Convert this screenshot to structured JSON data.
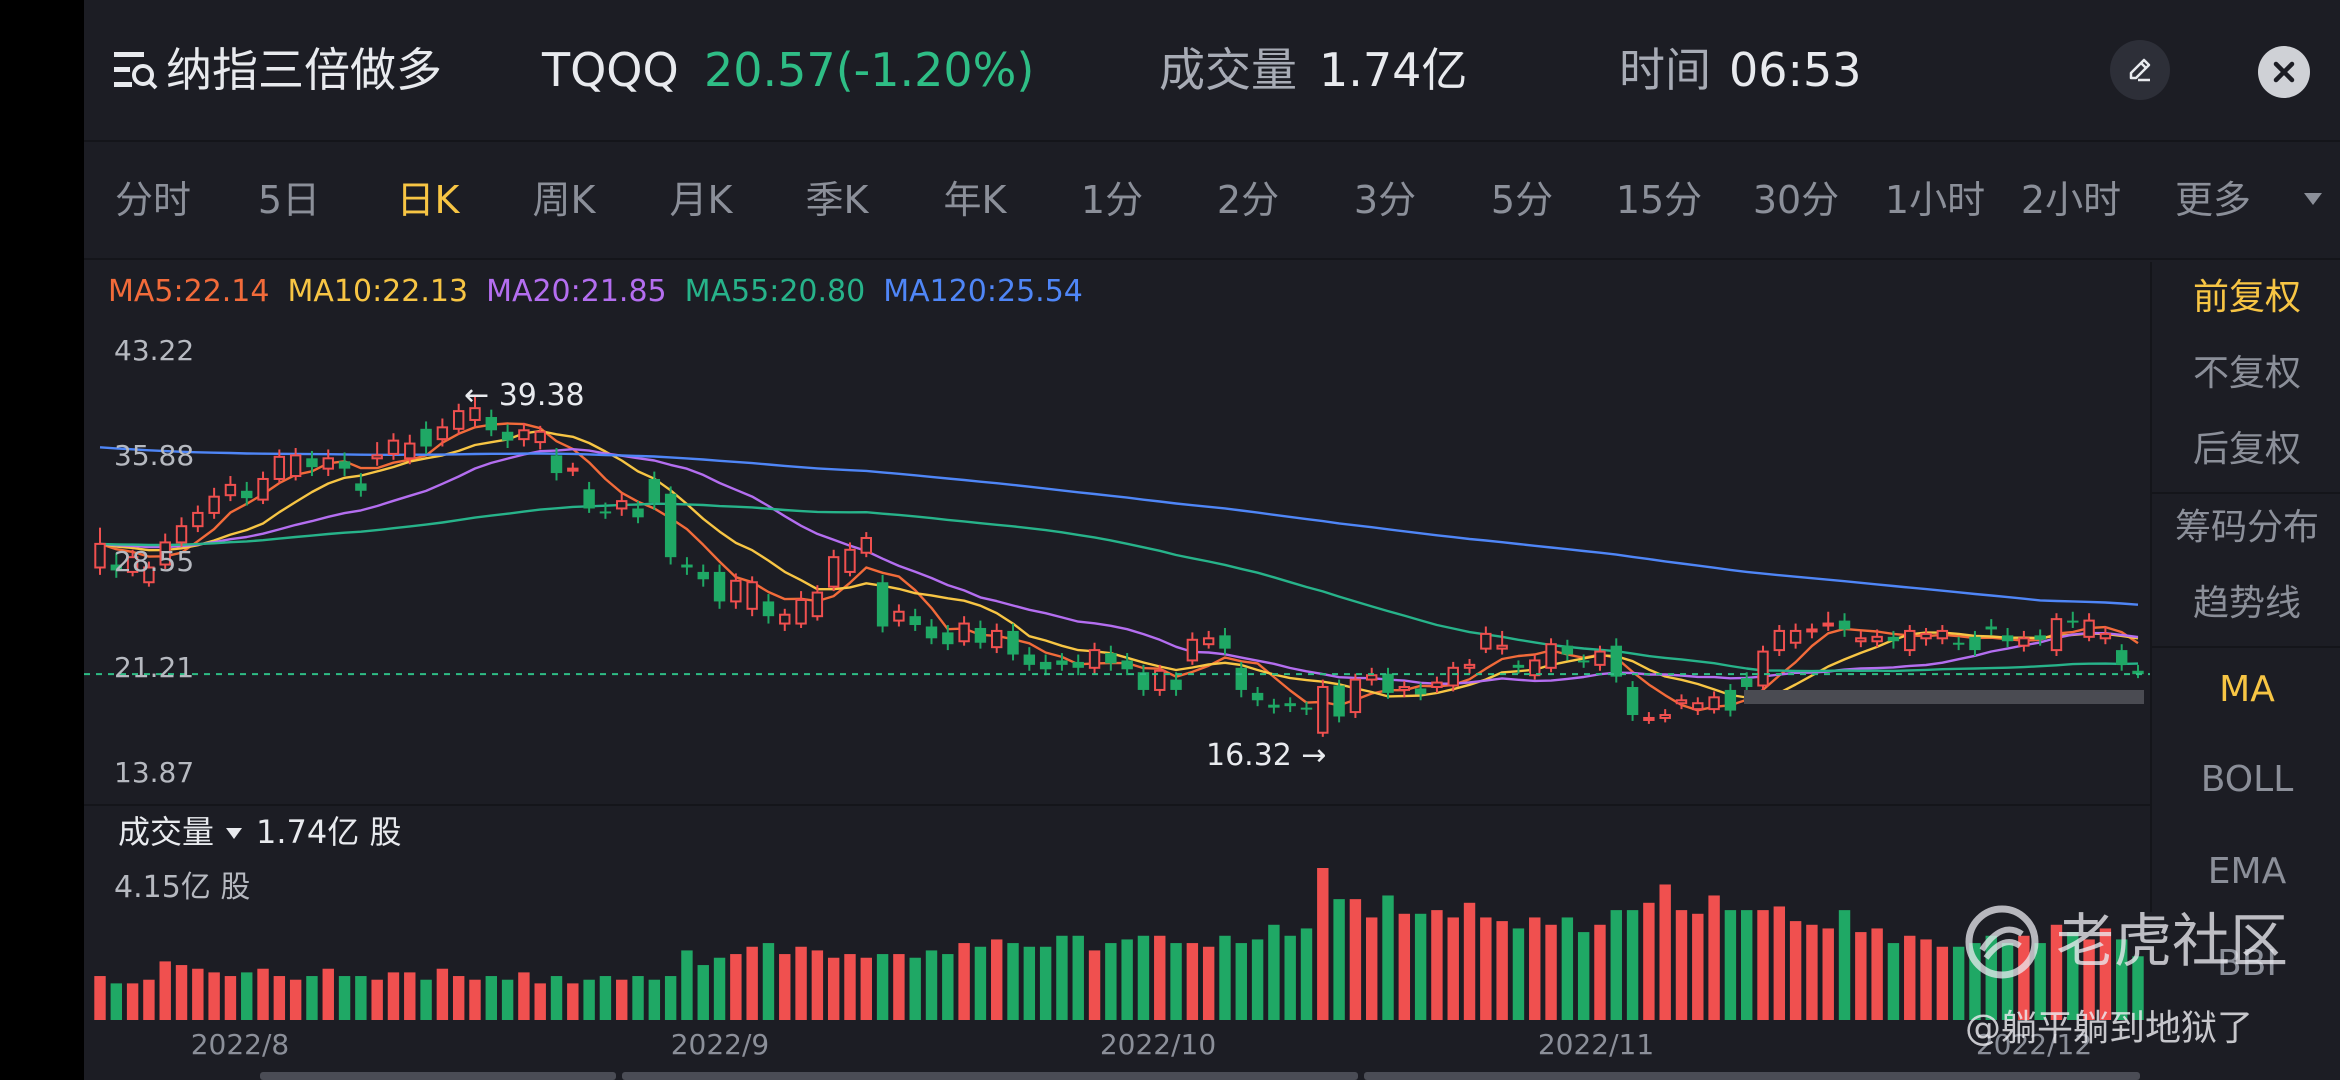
{
  "header": {
    "name": "纳指三倍做多",
    "ticker": "TQQQ",
    "price": "20.57(-1.20%)",
    "volume_label": "成交量",
    "volume_value": "1.74亿",
    "time_label": "时间",
    "time_value": "06:53",
    "menu_icon": "menu-search-icon",
    "edit_icon": "pencil-icon",
    "close_icon": "close-icon"
  },
  "periods": [
    "分时",
    "5日",
    "日K",
    "周K",
    "月K",
    "季K",
    "年K",
    "1分",
    "2分",
    "3分",
    "5分",
    "15分",
    "30分",
    "1小时",
    "2小时",
    "更多"
  ],
  "active_period": "日K",
  "ma_legend": [
    {
      "label": "MA5:22.14",
      "color": "#f26b3a"
    },
    {
      "label": "MA10:22.13",
      "color": "#f7c544"
    },
    {
      "label": "MA20:21.85",
      "color": "#b46ef0"
    },
    {
      "label": "MA55:20.80",
      "color": "#27b38a"
    },
    {
      "label": "MA120:25.54",
      "color": "#4f86f7"
    }
  ],
  "right_panel": {
    "items": [
      "前复权",
      "不复权",
      "后复权",
      "筹码分布",
      "趋势线",
      "MA",
      "BOLL",
      "EMA",
      "BBI"
    ],
    "active": [
      "前复权",
      "MA"
    ]
  },
  "volume": {
    "label": "成交量",
    "value": "1.74亿 股",
    "max_label": "4.15亿 股"
  },
  "colors": {
    "up": "#f0504f",
    "down": "#1fa865",
    "accent": "#f7c544",
    "price_down": "#2ebd85"
  },
  "watermark": {
    "brand": "老虎社区",
    "user": "@躺平躺到地狱了"
  },
  "chart_data": {
    "type": "candlestick",
    "y_ticks": [
      "43.22",
      "35.88",
      "28.55",
      "21.21",
      "13.87"
    ],
    "ylim": [
      13.87,
      43.22
    ],
    "x_labels": [
      "2022/8",
      "2022/9",
      "2022/10",
      "2022/11",
      "2022/12"
    ],
    "last_close_line": 20.57,
    "annotations": [
      {
        "label": "39.38",
        "value": 39.38,
        "type": "high"
      },
      {
        "label": "16.32",
        "value": 16.32,
        "type": "low"
      }
    ],
    "candles": [
      {
        "o": 27.8,
        "c": 29.4,
        "h": 30.5,
        "l": 27.3,
        "v": 1.2
      },
      {
        "o": 28.0,
        "c": 27.6,
        "h": 28.8,
        "l": 27.1,
        "v": 1.0
      },
      {
        "o": 27.5,
        "c": 28.5,
        "h": 29.0,
        "l": 27.2,
        "v": 1.0
      },
      {
        "o": 26.8,
        "c": 27.8,
        "h": 28.2,
        "l": 26.5,
        "v": 1.1
      },
      {
        "o": 28.0,
        "c": 29.5,
        "h": 30.1,
        "l": 27.7,
        "v": 1.6
      },
      {
        "o": 29.5,
        "c": 30.6,
        "h": 31.2,
        "l": 29.2,
        "v": 1.5
      },
      {
        "o": 30.6,
        "c": 31.5,
        "h": 32.0,
        "l": 30.2,
        "v": 1.4
      },
      {
        "o": 31.5,
        "c": 32.6,
        "h": 33.2,
        "l": 31.1,
        "v": 1.3
      },
      {
        "o": 32.7,
        "c": 33.4,
        "h": 34.0,
        "l": 32.3,
        "v": 1.2
      },
      {
        "o": 33.0,
        "c": 32.5,
        "h": 33.6,
        "l": 32.0,
        "v": 1.3
      },
      {
        "o": 32.4,
        "c": 33.8,
        "h": 34.3,
        "l": 32.1,
        "v": 1.4
      },
      {
        "o": 33.8,
        "c": 35.3,
        "h": 35.8,
        "l": 33.5,
        "v": 1.2
      },
      {
        "o": 34.0,
        "c": 35.4,
        "h": 35.9,
        "l": 33.7,
        "v": 1.1
      },
      {
        "o": 35.2,
        "c": 34.6,
        "h": 35.7,
        "l": 34.0,
        "v": 1.2
      },
      {
        "o": 34.5,
        "c": 35.2,
        "h": 35.8,
        "l": 34.0,
        "v": 1.4
      },
      {
        "o": 35.0,
        "c": 34.5,
        "h": 35.6,
        "l": 34.0,
        "v": 1.2
      },
      {
        "o": 33.5,
        "c": 33.0,
        "h": 34.2,
        "l": 32.6,
        "v": 1.2
      },
      {
        "o": 35.2,
        "c": 35.4,
        "h": 36.3,
        "l": 34.7,
        "v": 1.1
      },
      {
        "o": 35.5,
        "c": 36.4,
        "h": 36.9,
        "l": 35.1,
        "v": 1.3
      },
      {
        "o": 35.2,
        "c": 36.2,
        "h": 36.8,
        "l": 34.8,
        "v": 1.3
      },
      {
        "o": 37.2,
        "c": 36.0,
        "h": 37.7,
        "l": 35.5,
        "v": 1.1
      },
      {
        "o": 36.5,
        "c": 37.3,
        "h": 37.9,
        "l": 36.0,
        "v": 1.4
      },
      {
        "o": 37.2,
        "c": 38.4,
        "h": 38.9,
        "l": 36.8,
        "v": 1.2
      },
      {
        "o": 37.8,
        "c": 38.6,
        "h": 39.38,
        "l": 37.3,
        "v": 1.1
      },
      {
        "o": 38.0,
        "c": 37.1,
        "h": 38.5,
        "l": 36.7,
        "v": 1.2
      },
      {
        "o": 37.0,
        "c": 36.4,
        "h": 37.5,
        "l": 35.9,
        "v": 1.1
      },
      {
        "o": 36.5,
        "c": 37.1,
        "h": 37.6,
        "l": 36.0,
        "v": 1.3
      },
      {
        "o": 36.3,
        "c": 37.0,
        "h": 37.4,
        "l": 35.8,
        "v": 1.0
      },
      {
        "o": 35.4,
        "c": 34.2,
        "h": 35.9,
        "l": 33.7,
        "v": 1.2
      },
      {
        "o": 34.5,
        "c": 34.5,
        "h": 34.9,
        "l": 34.0,
        "v": 1.0
      },
      {
        "o": 33.1,
        "c": 31.8,
        "h": 33.6,
        "l": 31.5,
        "v": 1.1
      },
      {
        "o": 31.6,
        "c": 31.5,
        "h": 32.2,
        "l": 31.1,
        "v": 1.2
      },
      {
        "o": 31.8,
        "c": 32.3,
        "h": 32.8,
        "l": 31.3,
        "v": 1.1
      },
      {
        "o": 31.8,
        "c": 31.2,
        "h": 32.3,
        "l": 30.8,
        "v": 1.2
      },
      {
        "o": 33.8,
        "c": 32.2,
        "h": 34.3,
        "l": 31.7,
        "v": 1.1
      },
      {
        "o": 32.8,
        "c": 28.5,
        "h": 33.3,
        "l": 28.0,
        "v": 1.2
      },
      {
        "o": 28.0,
        "c": 27.8,
        "h": 28.5,
        "l": 27.3,
        "v": 1.9
      },
      {
        "o": 27.5,
        "c": 27.0,
        "h": 28.0,
        "l": 26.5,
        "v": 1.5
      },
      {
        "o": 27.5,
        "c": 25.5,
        "h": 28.0,
        "l": 25.0,
        "v": 1.7
      },
      {
        "o": 25.5,
        "c": 26.9,
        "h": 27.4,
        "l": 25.0,
        "v": 1.8
      },
      {
        "o": 25.0,
        "c": 26.8,
        "h": 27.2,
        "l": 24.5,
        "v": 2.0
      },
      {
        "o": 25.5,
        "c": 24.5,
        "h": 26.0,
        "l": 24.0,
        "v": 2.1
      },
      {
        "o": 24.0,
        "c": 24.6,
        "h": 25.0,
        "l": 23.5,
        "v": 1.8
      },
      {
        "o": 24.0,
        "c": 25.6,
        "h": 26.2,
        "l": 23.7,
        "v": 2.0
      },
      {
        "o": 24.5,
        "c": 26.1,
        "h": 26.6,
        "l": 24.2,
        "v": 1.9
      },
      {
        "o": 26.5,
        "c": 28.5,
        "h": 29.0,
        "l": 26.2,
        "v": 1.7
      },
      {
        "o": 27.5,
        "c": 29.0,
        "h": 29.5,
        "l": 27.2,
        "v": 1.8
      },
      {
        "o": 28.8,
        "c": 29.8,
        "h": 30.2,
        "l": 28.5,
        "v": 1.7
      },
      {
        "o": 26.8,
        "c": 23.8,
        "h": 27.3,
        "l": 23.4,
        "v": 1.8
      },
      {
        "o": 24.2,
        "c": 24.8,
        "h": 25.3,
        "l": 23.8,
        "v": 1.8
      },
      {
        "o": 24.5,
        "c": 23.9,
        "h": 25.0,
        "l": 23.5,
        "v": 1.7
      },
      {
        "o": 23.8,
        "c": 23.0,
        "h": 24.3,
        "l": 22.6,
        "v": 1.9
      },
      {
        "o": 23.4,
        "c": 22.6,
        "h": 23.9,
        "l": 22.2,
        "v": 1.8
      },
      {
        "o": 22.8,
        "c": 24.0,
        "h": 24.5,
        "l": 22.5,
        "v": 2.1
      },
      {
        "o": 23.7,
        "c": 22.7,
        "h": 24.2,
        "l": 22.3,
        "v": 2.0
      },
      {
        "o": 22.4,
        "c": 23.5,
        "h": 24.0,
        "l": 22.0,
        "v": 2.2
      },
      {
        "o": 23.5,
        "c": 21.9,
        "h": 24.0,
        "l": 21.5,
        "v": 2.1
      },
      {
        "o": 21.9,
        "c": 21.2,
        "h": 22.4,
        "l": 20.8,
        "v": 2.0
      },
      {
        "o": 21.4,
        "c": 20.9,
        "h": 21.9,
        "l": 20.5,
        "v": 2.0
      },
      {
        "o": 21.5,
        "c": 21.2,
        "h": 22.0,
        "l": 20.8,
        "v": 2.3
      },
      {
        "o": 21.4,
        "c": 21.0,
        "h": 21.9,
        "l": 20.5,
        "v": 2.3
      },
      {
        "o": 21.0,
        "c": 22.2,
        "h": 22.7,
        "l": 20.6,
        "v": 1.9
      },
      {
        "o": 22.0,
        "c": 21.3,
        "h": 22.5,
        "l": 20.8,
        "v": 2.1
      },
      {
        "o": 21.5,
        "c": 20.9,
        "h": 22.0,
        "l": 20.5,
        "v": 2.2
      },
      {
        "o": 20.7,
        "c": 19.5,
        "h": 21.2,
        "l": 19.1,
        "v": 2.3
      },
      {
        "o": 19.5,
        "c": 20.8,
        "h": 21.2,
        "l": 19.1,
        "v": 2.3
      },
      {
        "o": 20.2,
        "c": 19.5,
        "h": 20.7,
        "l": 19.1,
        "v": 2.1
      },
      {
        "o": 21.5,
        "c": 22.9,
        "h": 23.4,
        "l": 21.2,
        "v": 2.1
      },
      {
        "o": 22.6,
        "c": 23.0,
        "h": 23.5,
        "l": 22.3,
        "v": 2.0
      },
      {
        "o": 23.2,
        "c": 22.3,
        "h": 23.7,
        "l": 21.9,
        "v": 2.3
      },
      {
        "o": 21.0,
        "c": 19.5,
        "h": 21.4,
        "l": 19.0,
        "v": 2.1
      },
      {
        "o": 19.3,
        "c": 18.8,
        "h": 19.7,
        "l": 18.4,
        "v": 2.2
      },
      {
        "o": 18.5,
        "c": 18.3,
        "h": 18.9,
        "l": 17.9,
        "v": 2.6
      },
      {
        "o": 18.6,
        "c": 18.4,
        "h": 19.0,
        "l": 18.0,
        "v": 2.3
      },
      {
        "o": 18.3,
        "c": 18.2,
        "h": 18.7,
        "l": 17.8,
        "v": 2.5
      },
      {
        "o": 16.6,
        "c": 19.7,
        "h": 20.2,
        "l": 16.32,
        "v": 4.15
      },
      {
        "o": 19.8,
        "c": 17.7,
        "h": 20.2,
        "l": 17.3,
        "v": 3.3
      },
      {
        "o": 18.0,
        "c": 20.2,
        "h": 20.6,
        "l": 17.6,
        "v": 3.3
      },
      {
        "o": 20.2,
        "c": 20.5,
        "h": 21.0,
        "l": 19.8,
        "v": 2.8
      },
      {
        "o": 20.6,
        "c": 19.3,
        "h": 21.0,
        "l": 18.9,
        "v": 3.4
      },
      {
        "o": 19.5,
        "c": 19.7,
        "h": 20.1,
        "l": 19.0,
        "v": 2.9
      },
      {
        "o": 19.6,
        "c": 19.2,
        "h": 20.0,
        "l": 18.8,
        "v": 2.9
      },
      {
        "o": 19.7,
        "c": 20.0,
        "h": 20.4,
        "l": 19.3,
        "v": 3.0
      },
      {
        "o": 19.8,
        "c": 21.0,
        "h": 21.4,
        "l": 19.4,
        "v": 2.8
      },
      {
        "o": 21.0,
        "c": 21.2,
        "h": 21.6,
        "l": 20.6,
        "v": 3.2
      },
      {
        "o": 22.3,
        "c": 23.3,
        "h": 23.8,
        "l": 22.0,
        "v": 2.8
      },
      {
        "o": 22.3,
        "c": 22.5,
        "h": 23.5,
        "l": 21.9,
        "v": 2.7
      },
      {
        "o": 21.2,
        "c": 21.0,
        "h": 21.5,
        "l": 20.6,
        "v": 2.5
      },
      {
        "o": 20.5,
        "c": 21.5,
        "h": 21.9,
        "l": 20.2,
        "v": 2.8
      },
      {
        "o": 21.0,
        "c": 22.6,
        "h": 23.0,
        "l": 20.7,
        "v": 2.6
      },
      {
        "o": 22.5,
        "c": 21.9,
        "h": 22.9,
        "l": 21.5,
        "v": 2.8
      },
      {
        "o": 21.5,
        "c": 21.4,
        "h": 21.9,
        "l": 21.0,
        "v": 2.4
      },
      {
        "o": 21.2,
        "c": 22.1,
        "h": 22.5,
        "l": 20.8,
        "v": 2.6
      },
      {
        "o": 22.5,
        "c": 20.4,
        "h": 23.0,
        "l": 20.0,
        "v": 3.0
      },
      {
        "o": 19.7,
        "c": 17.8,
        "h": 20.1,
        "l": 17.4,
        "v": 3.0
      },
      {
        "o": 17.6,
        "c": 17.6,
        "h": 18.0,
        "l": 17.2,
        "v": 3.2
      },
      {
        "o": 17.6,
        "c": 17.8,
        "h": 18.2,
        "l": 17.3,
        "v": 3.7
      },
      {
        "o": 18.6,
        "c": 18.8,
        "h": 19.2,
        "l": 18.2,
        "v": 3.0
      },
      {
        "o": 18.2,
        "c": 18.6,
        "h": 19.0,
        "l": 17.8,
        "v": 2.9
      },
      {
        "o": 18.2,
        "c": 19.0,
        "h": 19.4,
        "l": 17.9,
        "v": 3.4
      },
      {
        "o": 19.5,
        "c": 18.1,
        "h": 19.9,
        "l": 17.7,
        "v": 3.0
      },
      {
        "o": 20.3,
        "c": 19.7,
        "h": 20.7,
        "l": 19.3,
        "v": 3.0
      },
      {
        "o": 19.8,
        "c": 22.1,
        "h": 22.5,
        "l": 19.5,
        "v": 3.0
      },
      {
        "o": 22.2,
        "c": 23.5,
        "h": 23.9,
        "l": 21.8,
        "v": 3.1
      },
      {
        "o": 22.7,
        "c": 23.5,
        "h": 24.0,
        "l": 22.3,
        "v": 2.7
      },
      {
        "o": 23.5,
        "c": 23.6,
        "h": 24.0,
        "l": 23.0,
        "v": 2.6
      },
      {
        "o": 24.0,
        "c": 24.0,
        "h": 24.8,
        "l": 23.5,
        "v": 2.5
      },
      {
        "o": 24.2,
        "c": 23.6,
        "h": 24.7,
        "l": 23.1,
        "v": 3.0
      },
      {
        "o": 22.8,
        "c": 23.0,
        "h": 23.5,
        "l": 22.4,
        "v": 2.4
      },
      {
        "o": 22.8,
        "c": 23.1,
        "h": 23.6,
        "l": 22.4,
        "v": 2.5
      },
      {
        "o": 23.1,
        "c": 22.8,
        "h": 23.5,
        "l": 22.3,
        "v": 2.1
      },
      {
        "o": 22.2,
        "c": 23.5,
        "h": 23.9,
        "l": 21.8,
        "v": 2.3
      },
      {
        "o": 23.0,
        "c": 23.3,
        "h": 23.7,
        "l": 22.5,
        "v": 2.2
      },
      {
        "o": 23.0,
        "c": 23.5,
        "h": 23.9,
        "l": 22.6,
        "v": 2.0
      },
      {
        "o": 22.7,
        "c": 22.6,
        "h": 23.1,
        "l": 22.2,
        "v": 2.0
      },
      {
        "o": 23.1,
        "c": 22.2,
        "h": 23.5,
        "l": 21.8,
        "v": 2.1
      },
      {
        "o": 23.8,
        "c": 23.6,
        "h": 24.3,
        "l": 23.2,
        "v": 2.3
      },
      {
        "o": 23.2,
        "c": 22.8,
        "h": 23.7,
        "l": 22.4,
        "v": 2.1
      },
      {
        "o": 22.5,
        "c": 23.0,
        "h": 23.5,
        "l": 22.1,
        "v": 2.3
      },
      {
        "o": 23.2,
        "c": 22.9,
        "h": 23.6,
        "l": 22.5,
        "v": 2.1
      },
      {
        "o": 22.2,
        "c": 24.3,
        "h": 24.7,
        "l": 21.8,
        "v": 2.6
      },
      {
        "o": 24.2,
        "c": 24.1,
        "h": 24.8,
        "l": 23.7,
        "v": 2.4
      },
      {
        "o": 23.1,
        "c": 24.2,
        "h": 24.7,
        "l": 22.8,
        "v": 2.2
      },
      {
        "o": 23.0,
        "c": 23.3,
        "h": 23.8,
        "l": 22.6,
        "v": 2.5
      },
      {
        "o": 22.2,
        "c": 21.2,
        "h": 22.6,
        "l": 20.8,
        "v": 2.2
      },
      {
        "o": 20.8,
        "c": 20.57,
        "h": 21.2,
        "l": 20.3,
        "v": 1.74
      }
    ]
  }
}
